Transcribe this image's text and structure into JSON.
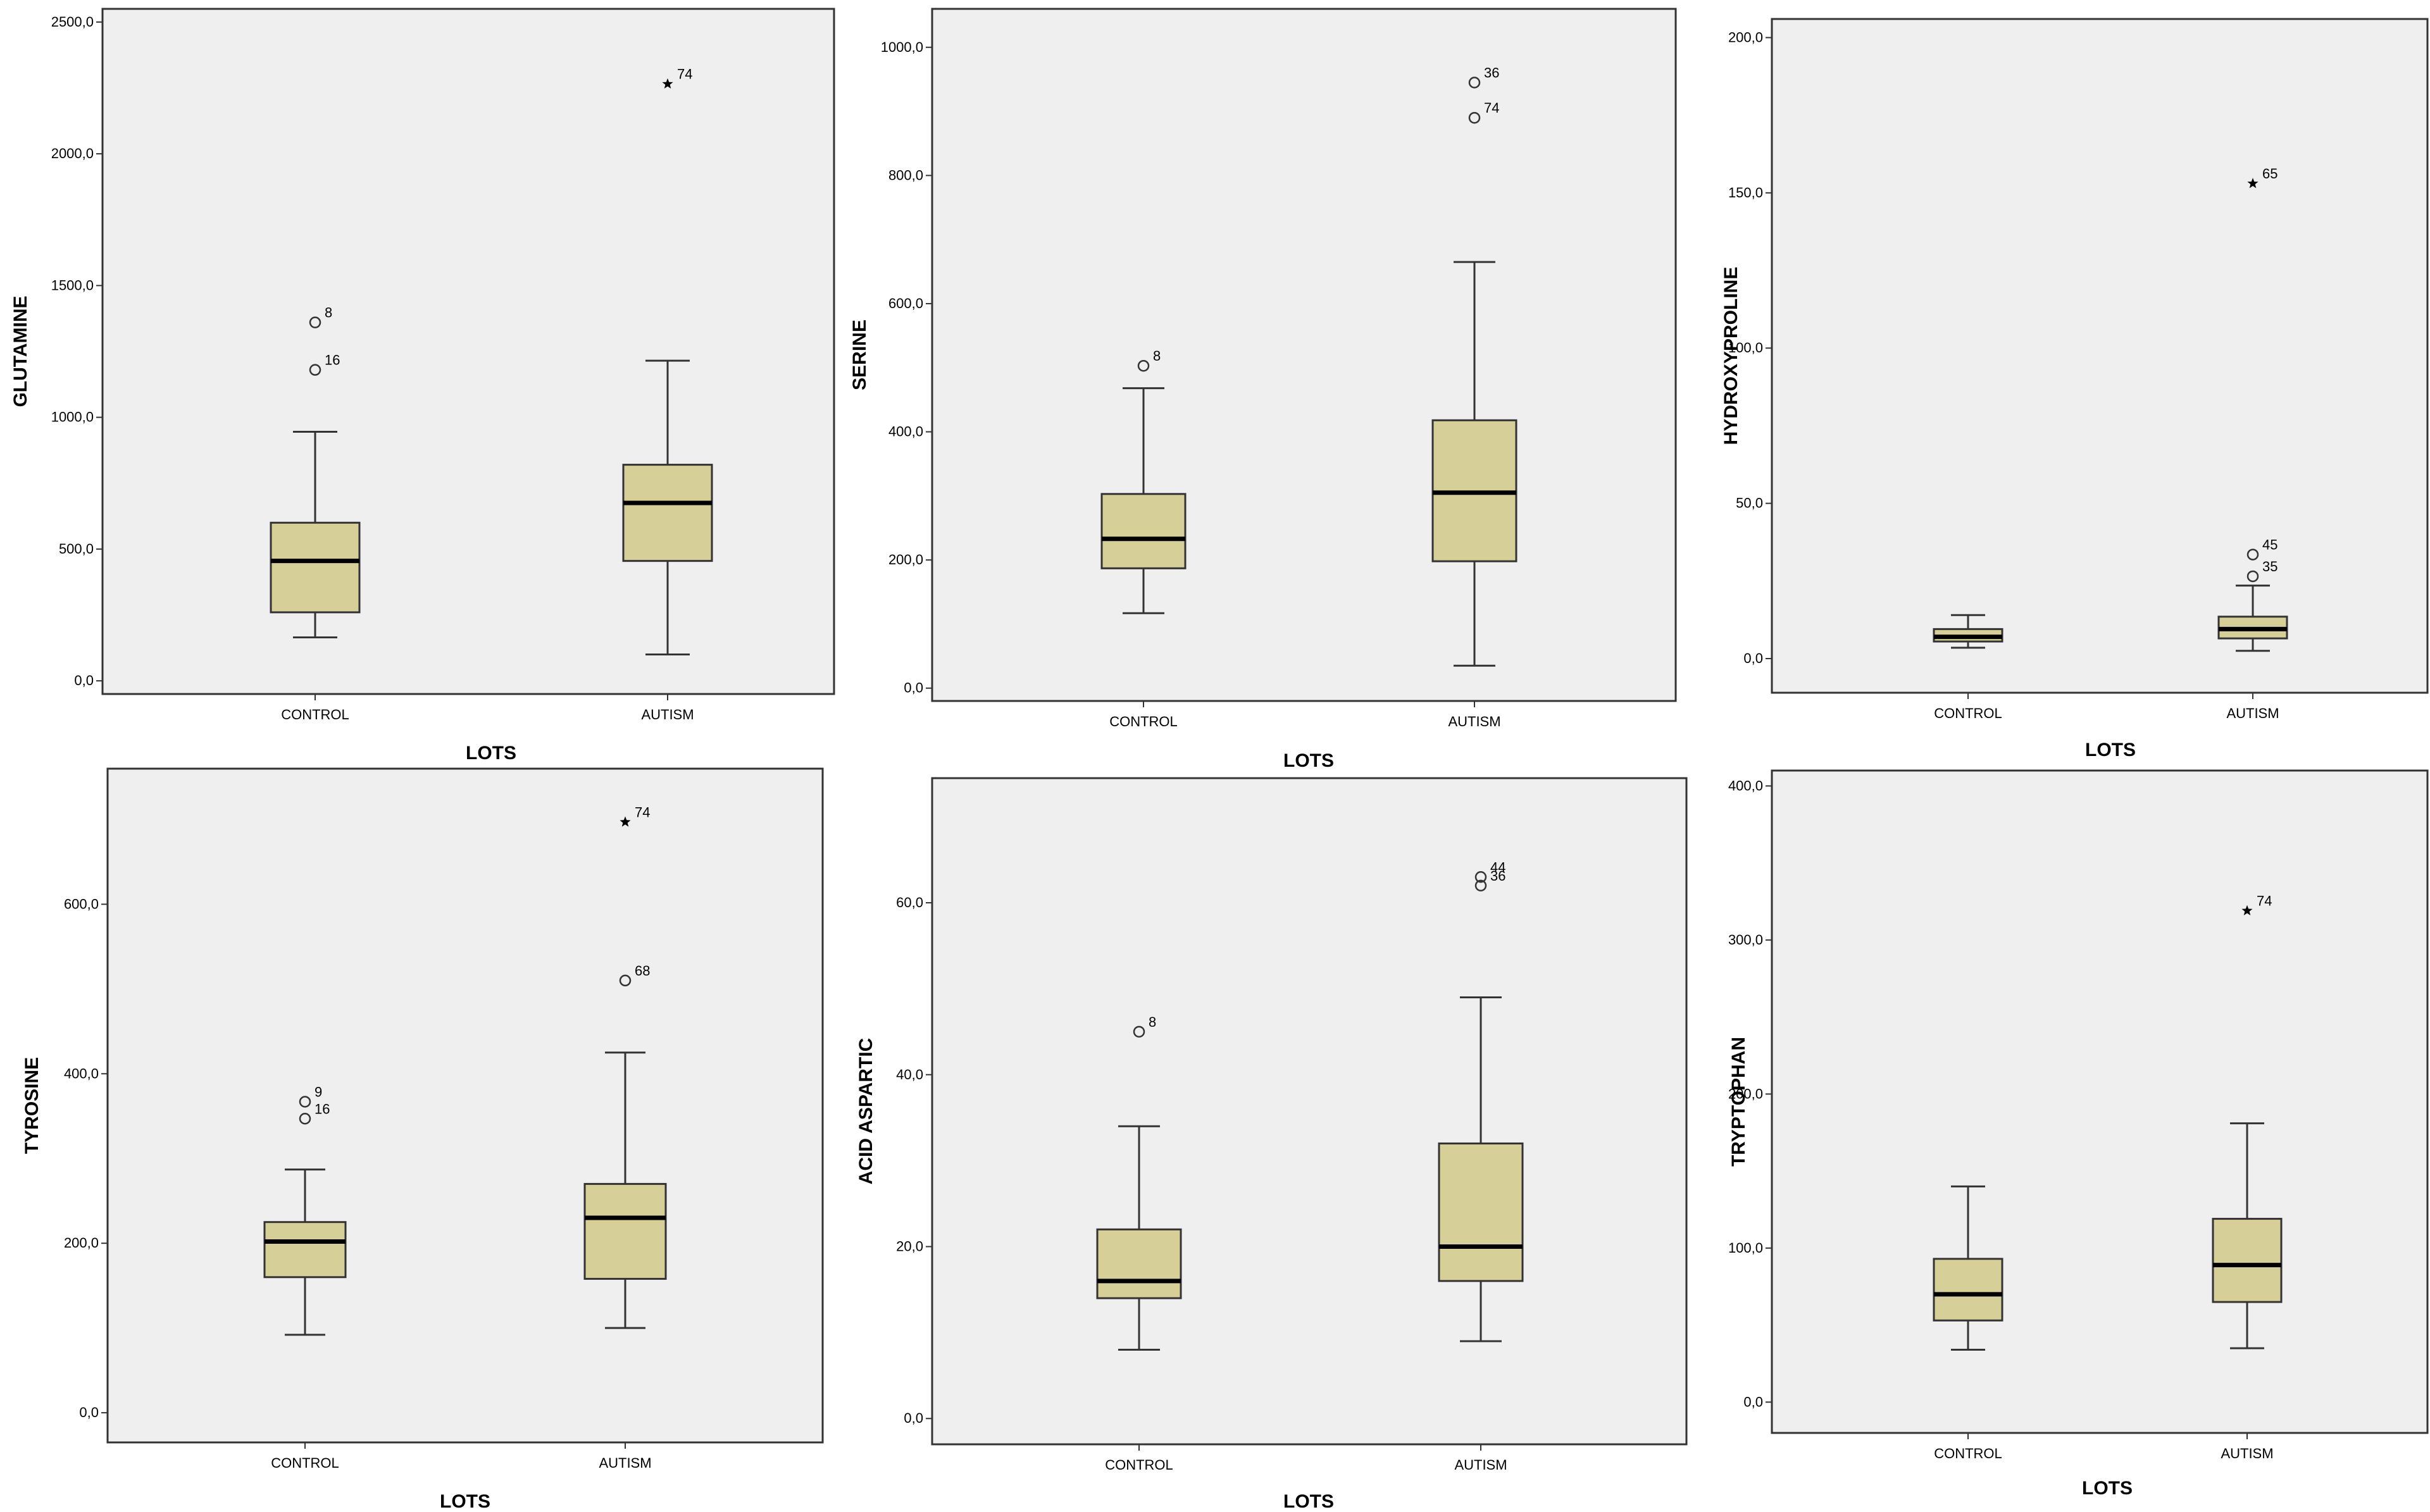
{
  "colors": {
    "plot_bg": "#efefef",
    "box_fill": "#d7cf98",
    "stroke": "#333333",
    "median": "#000000"
  },
  "chart_data": [
    {
      "type": "boxplot",
      "ylabel": "GLUTAMINE",
      "xlabel": "LOTS",
      "ylim": [
        -50,
        2550
      ],
      "yticks": [
        0,
        500,
        1000,
        1500,
        2000,
        2500
      ],
      "ytick_labels": [
        "0,0",
        "500,0",
        "1000,0",
        "1500,0",
        "2000,0",
        "2500,0"
      ],
      "categories": [
        "CONTROL",
        "AUTISM"
      ],
      "boxes": [
        {
          "group": "CONTROL",
          "whisker_low": 165,
          "q1": 260,
          "median": 455,
          "q3": 600,
          "whisker_high": 945,
          "outliers": [
            {
              "value": 1360,
              "label": "8",
              "marker": "circle"
            },
            {
              "value": 1180,
              "label": "16",
              "marker": "circle"
            }
          ]
        },
        {
          "group": "AUTISM",
          "whisker_low": 100,
          "q1": 455,
          "median": 675,
          "q3": 820,
          "whisker_high": 1215,
          "outliers": [
            {
              "value": 2265,
              "label": "74",
              "marker": "star"
            }
          ]
        }
      ]
    },
    {
      "type": "boxplot",
      "ylabel": "SERINE",
      "xlabel": "LOTS",
      "ylim": [
        -20,
        1060
      ],
      "yticks": [
        0,
        200,
        400,
        600,
        800,
        1000
      ],
      "ytick_labels": [
        "0,0",
        "200,0",
        "400,0",
        "600,0",
        "800,0",
        "1000,0"
      ],
      "categories": [
        "CONTROL",
        "AUTISM"
      ],
      "boxes": [
        {
          "group": "CONTROL",
          "whisker_low": 117,
          "q1": 187,
          "median": 233,
          "q3": 303,
          "whisker_high": 468,
          "outliers": [
            {
              "value": 503,
              "label": "8",
              "marker": "circle"
            }
          ]
        },
        {
          "group": "AUTISM",
          "whisker_low": 35,
          "q1": 198,
          "median": 305,
          "q3": 418,
          "whisker_high": 665,
          "outliers": [
            {
              "value": 945,
              "label": "36",
              "marker": "circle"
            },
            {
              "value": 890,
              "label": "74",
              "marker": "circle"
            }
          ]
        }
      ]
    },
    {
      "type": "boxplot",
      "ylabel": "HYDROXYPROLINE",
      "xlabel": "LOTS",
      "ylim": [
        -11,
        206
      ],
      "yticks": [
        0,
        50,
        100,
        150,
        200
      ],
      "ytick_labels": [
        "0,0",
        "50,0",
        "100,0",
        "150,0",
        "200,0"
      ],
      "categories": [
        "CONTROL",
        "AUTISM"
      ],
      "boxes": [
        {
          "group": "CONTROL",
          "whisker_low": 3.5,
          "q1": 5.5,
          "median": 7,
          "q3": 9.5,
          "whisker_high": 14,
          "outliers": []
        },
        {
          "group": "AUTISM",
          "whisker_low": 2.5,
          "q1": 6.5,
          "median": 9.5,
          "q3": 13.5,
          "whisker_high": 23.5,
          "outliers": [
            {
              "value": 153,
              "label": "65",
              "marker": "star"
            },
            {
              "value": 33.5,
              "label": "45",
              "marker": "circle"
            },
            {
              "value": 26.5,
              "label": "35",
              "marker": "circle"
            }
          ]
        }
      ]
    },
    {
      "type": "boxplot",
      "ylabel": "TYROSINE",
      "xlabel": "LOTS",
      "ylim": [
        -35,
        760
      ],
      "yticks": [
        0,
        200,
        400,
        600
      ],
      "ytick_labels": [
        "0,0",
        "200,0",
        "400,0",
        "600,0"
      ],
      "categories": [
        "CONTROL",
        "AUTISM"
      ],
      "boxes": [
        {
          "group": "CONTROL",
          "whisker_low": 92,
          "q1": 160,
          "median": 202,
          "q3": 225,
          "whisker_high": 287,
          "outliers": [
            {
              "value": 367,
              "label": "9",
              "marker": "circle"
            },
            {
              "value": 347,
              "label": "16",
              "marker": "circle"
            }
          ]
        },
        {
          "group": "AUTISM",
          "whisker_low": 100,
          "q1": 158,
          "median": 230,
          "q3": 270,
          "whisker_high": 425,
          "outliers": [
            {
              "value": 697,
              "label": "74",
              "marker": "star"
            },
            {
              "value": 510,
              "label": "68",
              "marker": "circle"
            }
          ]
        }
      ]
    },
    {
      "type": "boxplot",
      "ylabel": "ACID ASPARTIC",
      "xlabel": "LOTS",
      "ylim": [
        -3,
        74.5
      ],
      "yticks": [
        0,
        20,
        40,
        60
      ],
      "ytick_labels": [
        "0,0",
        "20,0",
        "40,0",
        "60,0"
      ],
      "categories": [
        "CONTROL",
        "AUTISM"
      ],
      "boxes": [
        {
          "group": "CONTROL",
          "whisker_low": 8,
          "q1": 14,
          "median": 16,
          "q3": 22,
          "whisker_high": 34,
          "outliers": [
            {
              "value": 45,
              "label": "8",
              "marker": "circle"
            }
          ]
        },
        {
          "group": "AUTISM",
          "whisker_low": 9,
          "q1": 16,
          "median": 20,
          "q3": 32,
          "whisker_high": 49,
          "outliers": [
            {
              "value": 63,
              "label": "44",
              "marker": "circle"
            },
            {
              "value": 62,
              "label": "36",
              "marker": "circle"
            }
          ]
        }
      ]
    },
    {
      "type": "boxplot",
      "ylabel": "TRYPTOPHAN",
      "xlabel": "LOTS",
      "ylim": [
        -20,
        410
      ],
      "yticks": [
        0,
        100,
        200,
        300,
        400
      ],
      "ytick_labels": [
        "0,0",
        "100,0",
        "200,0",
        "300,0",
        "400,0"
      ],
      "categories": [
        "CONTROL",
        "AUTISM"
      ],
      "boxes": [
        {
          "group": "CONTROL",
          "whisker_low": 34,
          "q1": 53,
          "median": 70,
          "q3": 93,
          "whisker_high": 140,
          "outliers": []
        },
        {
          "group": "AUTISM",
          "whisker_low": 35,
          "q1": 65,
          "median": 89,
          "q3": 119,
          "whisker_high": 181,
          "outliers": [
            {
              "value": 319,
              "label": "74",
              "marker": "star"
            }
          ]
        }
      ]
    }
  ]
}
